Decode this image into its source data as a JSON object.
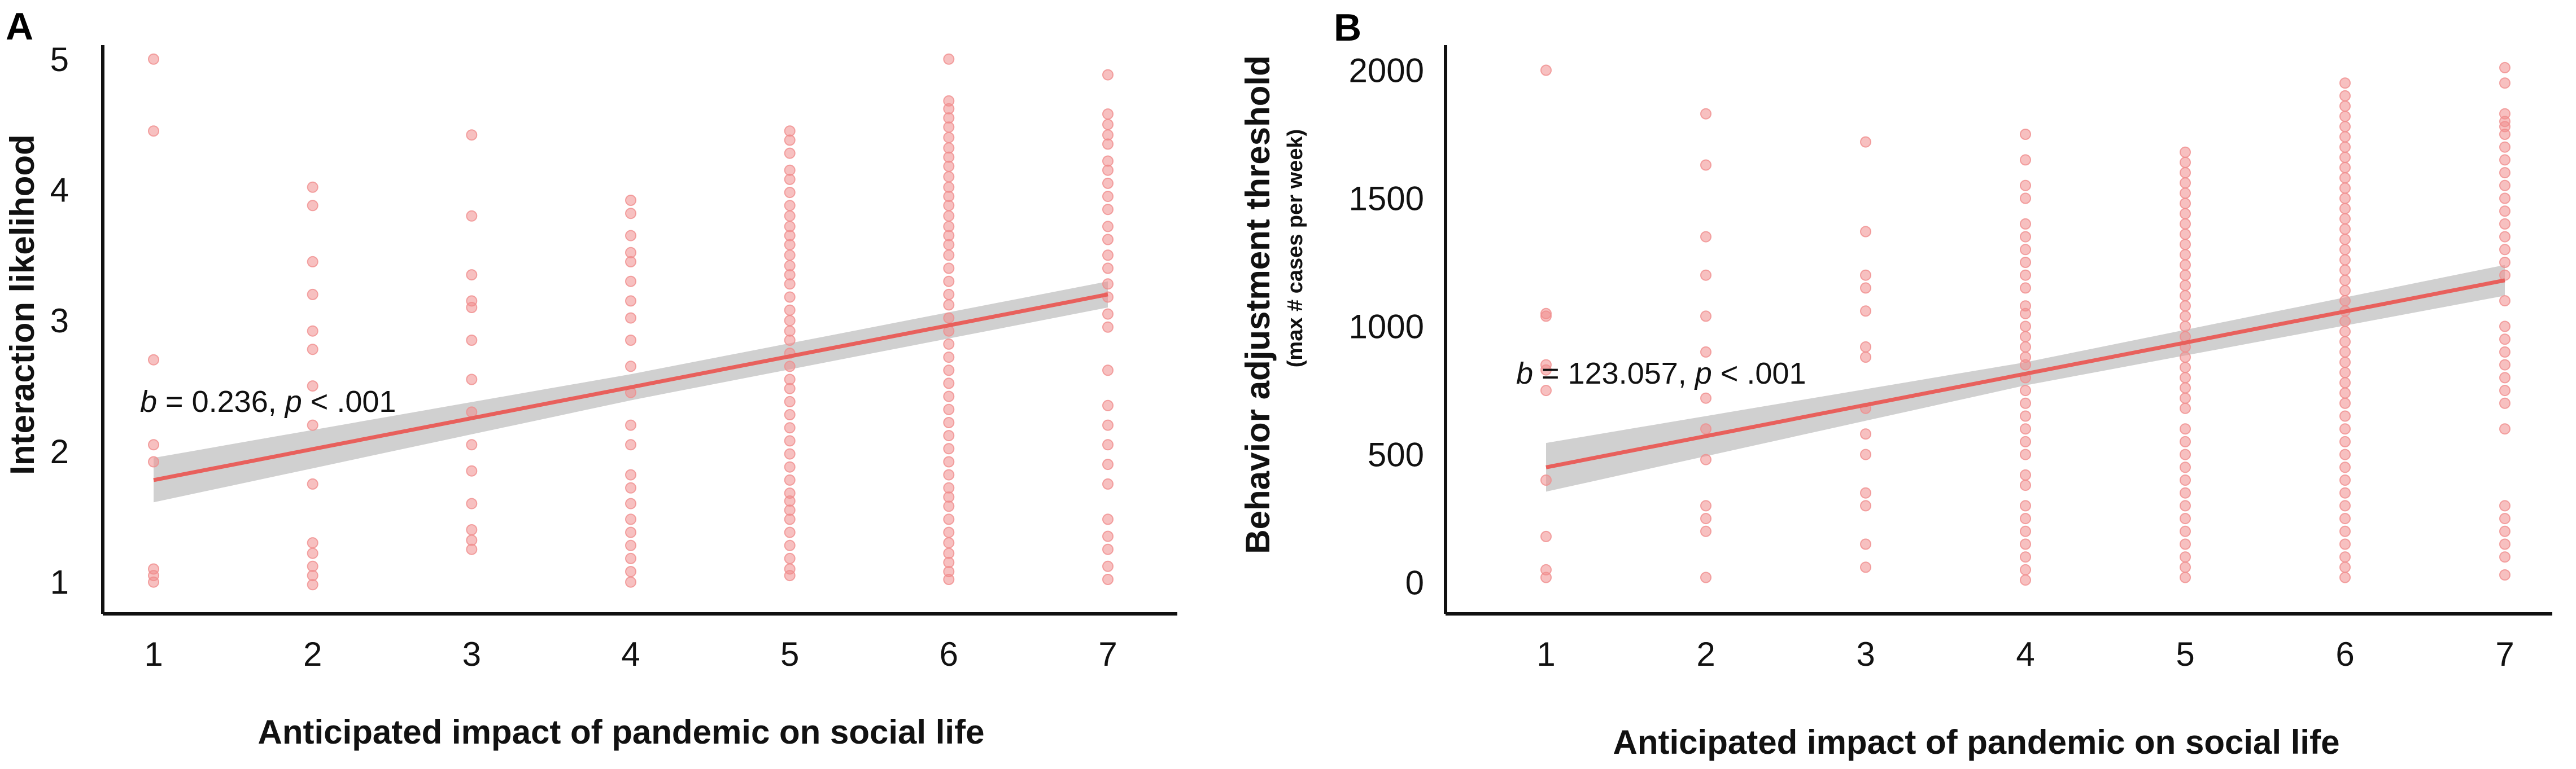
{
  "chart_data": [
    {
      "panel": "A",
      "type": "scatter",
      "title": "",
      "xlabel": "Anticipated impact of pandemic on social life",
      "ylabel": "Interaction likelihood",
      "ylabel_sub": "",
      "xlim": [
        0.7,
        7.3
      ],
      "ylim": [
        0.8,
        5.15
      ],
      "x_ticks": [
        "1",
        "2",
        "3",
        "4",
        "5",
        "6",
        "7"
      ],
      "y_ticks": [
        "1",
        "2",
        "3",
        "4",
        "5"
      ],
      "regression": {
        "b_symbol": "b",
        "b_text": " = 0.236, ",
        "p_symbol": "p",
        "p_text": " < .001",
        "line": [
          [
            1,
            1.78
          ],
          [
            7,
            3.2
          ]
        ],
        "ci_half_width": [
          0.17,
          0.1,
          0.1
        ],
        "color": "#e8605c",
        "band_color": "#c8c8c8"
      },
      "point_color": "#f08d8d",
      "points": {
        "1": [
          5.0,
          4.45,
          2.7,
          2.05,
          1.92,
          1.1,
          1.05,
          1.0
        ],
        "2": [
          4.02,
          3.88,
          3.45,
          3.2,
          2.92,
          2.78,
          2.5,
          2.2,
          1.75,
          1.3,
          1.22,
          1.12,
          1.05,
          0.98
        ],
        "3": [
          4.42,
          3.8,
          3.35,
          3.15,
          3.1,
          2.85,
          2.55,
          2.3,
          2.05,
          1.85,
          1.6,
          1.4,
          1.32,
          1.25
        ],
        "4": [
          3.92,
          3.82,
          3.65,
          3.52,
          3.45,
          3.3,
          3.15,
          3.02,
          2.85,
          2.65,
          2.45,
          2.2,
          2.05,
          1.82,
          1.72,
          1.6,
          1.48,
          1.38,
          1.28,
          1.18,
          1.08,
          1.0
        ],
        "5": [
          4.45,
          4.38,
          4.28,
          4.15,
          4.08,
          3.98,
          3.88,
          3.8,
          3.72,
          3.65,
          3.58,
          3.5,
          3.42,
          3.35,
          3.28,
          3.18,
          3.08,
          3.0,
          2.92,
          2.85,
          2.75,
          2.65,
          2.55,
          2.48,
          2.38,
          2.28,
          2.18,
          2.08,
          1.98,
          1.88,
          1.78,
          1.68,
          1.62,
          1.55,
          1.48,
          1.38,
          1.28,
          1.18,
          1.1,
          1.05
        ],
        "6": [
          5.0,
          4.68,
          4.62,
          4.55,
          4.48,
          4.4,
          4.32,
          4.25,
          4.18,
          4.1,
          4.02,
          3.95,
          3.88,
          3.8,
          3.72,
          3.65,
          3.58,
          3.5,
          3.4,
          3.3,
          3.2,
          3.12,
          3.02,
          2.92,
          2.82,
          2.72,
          2.62,
          2.52,
          2.42,
          2.32,
          2.22,
          2.12,
          2.02,
          1.92,
          1.82,
          1.72,
          1.65,
          1.58,
          1.48,
          1.38,
          1.3,
          1.22,
          1.15,
          1.08,
          1.02
        ],
        "7": [
          4.88,
          4.58,
          4.5,
          4.42,
          4.35,
          4.22,
          4.15,
          4.05,
          3.95,
          3.85,
          3.72,
          3.62,
          3.5,
          3.4,
          3.28,
          3.18,
          3.05,
          2.95,
          2.62,
          2.35,
          2.2,
          2.05,
          1.9,
          1.75,
          1.48,
          1.35,
          1.25,
          1.12,
          1.02
        ]
      }
    },
    {
      "panel": "B",
      "type": "scatter",
      "title": "",
      "xlabel": "Anticipated impact of pandemic on social life",
      "ylabel": "Behavior adjustment threshold",
      "ylabel_sub": "(max # cases per week)",
      "xlim": [
        0.7,
        7.3
      ],
      "ylim": [
        -100,
        2120
      ],
      "x_ticks": [
        "1",
        "2",
        "3",
        "4",
        "5",
        "6",
        "7"
      ],
      "y_ticks": [
        "0",
        "500",
        "1000",
        "1500",
        "2000"
      ],
      "regression": {
        "b_symbol": "b",
        "b_text": " = 123.057, ",
        "p_symbol": "p",
        "p_text": " < .001",
        "line": [
          [
            1,
            450
          ],
          [
            7,
            1180
          ]
        ],
        "ci_half_width": [
          95,
          45,
          60
        ],
        "color": "#e8605c",
        "band_color": "#c8c8c8"
      },
      "point_color": "#f08d8d",
      "points": {
        "1": [
          2000,
          1050,
          1040,
          850,
          830,
          750,
          400,
          180,
          50,
          20
        ],
        "2": [
          1830,
          1630,
          1350,
          1200,
          1040,
          900,
          720,
          600,
          480,
          300,
          250,
          200,
          20
        ],
        "3": [
          1720,
          1370,
          1200,
          1150,
          1060,
          920,
          880,
          680,
          580,
          500,
          350,
          300,
          150,
          60
        ],
        "4": [
          1750,
          1650,
          1550,
          1500,
          1400,
          1350,
          1300,
          1250,
          1200,
          1150,
          1080,
          1050,
          1000,
          960,
          920,
          880,
          850,
          800,
          750,
          700,
          650,
          600,
          550,
          500,
          420,
          380,
          300,
          250,
          200,
          150,
          100,
          50,
          10
        ],
        "5": [
          1680,
          1640,
          1600,
          1560,
          1520,
          1480,
          1440,
          1400,
          1360,
          1320,
          1280,
          1240,
          1200,
          1160,
          1120,
          1080,
          1040,
          1000,
          960,
          920,
          880,
          840,
          800,
          760,
          720,
          680,
          600,
          550,
          500,
          450,
          400,
          350,
          300,
          250,
          200,
          150,
          100,
          60,
          20
        ],
        "6": [
          1950,
          1900,
          1860,
          1820,
          1780,
          1740,
          1700,
          1660,
          1620,
          1580,
          1540,
          1500,
          1460,
          1420,
          1380,
          1340,
          1300,
          1260,
          1220,
          1180,
          1140,
          1100,
          1060,
          1020,
          980,
          940,
          900,
          860,
          820,
          780,
          740,
          700,
          650,
          600,
          550,
          500,
          450,
          400,
          350,
          300,
          250,
          200,
          150,
          100,
          60,
          20
        ],
        "7": [
          2010,
          1950,
          1830,
          1800,
          1780,
          1750,
          1700,
          1650,
          1600,
          1550,
          1500,
          1450,
          1400,
          1350,
          1300,
          1250,
          1200,
          1100,
          1000,
          950,
          900,
          850,
          800,
          750,
          700,
          600,
          300,
          250,
          200,
          150,
          100,
          30
        ]
      }
    }
  ]
}
